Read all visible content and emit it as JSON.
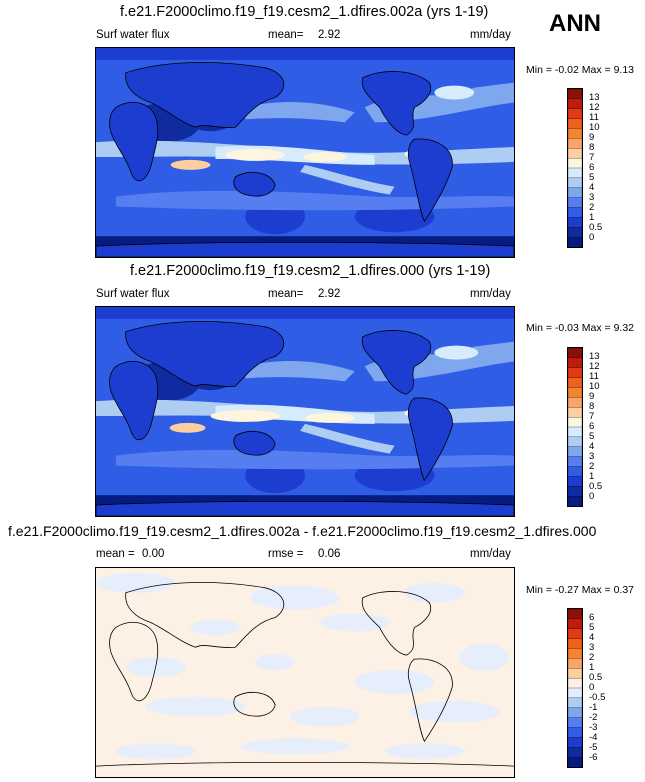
{
  "season": "ANN",
  "panels": [
    {
      "title": "f.e21.F2000climo.f19_f19.cesm2_1.dfires.002a (yrs 1-19)",
      "left_label": "Surf water flux",
      "mid_label": "mean=",
      "mid_value": "2.92",
      "units": "mm/day",
      "min_label": "Min =",
      "min_value": "-0.02",
      "max_label": "Max =",
      "max_value": "9.13",
      "colorbar_ticks": [
        "13",
        "12",
        "11",
        "10",
        "9",
        "8",
        "7",
        "6",
        "5",
        "4",
        "3",
        "2",
        "1",
        "0.5",
        "0"
      ],
      "colorbar_colors": [
        "#8b1008",
        "#c01c0c",
        "#e23a14",
        "#f0601e",
        "#f6842e",
        "#fba468",
        "#fdcfa0",
        "#fdf5de",
        "#d6ebfb",
        "#aecdf3",
        "#7ea7ee",
        "#567ef0",
        "#2f5de6",
        "#1d3dd0",
        "#102ba0",
        "#061c80"
      ]
    },
    {
      "title": "f.e21.F2000climo.f19_f19.cesm2_1.dfires.000 (yrs 1-19)",
      "left_label": "Surf water flux",
      "mid_label": "mean=",
      "mid_value": "2.92",
      "units": "mm/day",
      "min_label": "Min =",
      "min_value": "-0.03",
      "max_label": "Max =",
      "max_value": "9.32",
      "colorbar_ticks": [
        "13",
        "12",
        "11",
        "10",
        "9",
        "8",
        "7",
        "6",
        "5",
        "4",
        "3",
        "2",
        "1",
        "0.5",
        "0"
      ],
      "colorbar_colors": [
        "#8b1008",
        "#c01c0c",
        "#e23a14",
        "#f0601e",
        "#f6842e",
        "#fba468",
        "#fdcfa0",
        "#fdf5de",
        "#d6ebfb",
        "#aecdf3",
        "#7ea7ee",
        "#567ef0",
        "#2f5de6",
        "#1d3dd0",
        "#102ba0",
        "#061c80"
      ]
    },
    {
      "title": "f.e21.F2000climo.f19_f19.cesm2_1.dfires.002a - f.e21.F2000climo.f19_f19.cesm2_1.dfires.000",
      "left_label": "mean =",
      "left_value": "0.00",
      "mid_label": "rmse =",
      "mid_value": "0.06",
      "units": "mm/day",
      "min_label": "Min =",
      "min_value": "-0.27",
      "max_label": "Max =",
      "max_value": "0.37",
      "colorbar_ticks": [
        "6",
        "5",
        "4",
        "3",
        "2",
        "1",
        "0.5",
        "0",
        "-0.5",
        "-1",
        "-2",
        "-3",
        "-4",
        "-5",
        "-6"
      ],
      "colorbar_colors": [
        "#8b1008",
        "#c01c0c",
        "#e23a14",
        "#f0601e",
        "#f6842e",
        "#fba468",
        "#fdcfa0",
        "#fdf0e4",
        "#e6eefc",
        "#aecdf3",
        "#7ea7ee",
        "#567ef0",
        "#2f5de6",
        "#1d3dd0",
        "#102ba0",
        "#061c80"
      ]
    }
  ],
  "chart_data": [
    {
      "type": "heatmap",
      "title": "f.e21.F2000climo.f19_f19.cesm2_1.dfires.002a (yrs 1-19)",
      "variable": "Surf water flux",
      "units": "mm/day",
      "season": "ANN",
      "mean": 2.92,
      "min": -0.02,
      "max": 9.13,
      "contour_levels": [
        0,
        0.5,
        1,
        2,
        3,
        4,
        5,
        6,
        7,
        8,
        9,
        10,
        11,
        12,
        13
      ]
    },
    {
      "type": "heatmap",
      "title": "f.e21.F2000climo.f19_f19.cesm2_1.dfires.000 (yrs 1-19)",
      "variable": "Surf water flux",
      "units": "mm/day",
      "season": "ANN",
      "mean": 2.92,
      "min": -0.03,
      "max": 9.32,
      "contour_levels": [
        0,
        0.5,
        1,
        2,
        3,
        4,
        5,
        6,
        7,
        8,
        9,
        10,
        11,
        12,
        13
      ]
    },
    {
      "type": "heatmap",
      "title": "f.e21.F2000climo.f19_f19.cesm2_1.dfires.002a - f.e21.F2000climo.f19_f19.cesm2_1.dfires.000",
      "units": "mm/day",
      "season": "ANN",
      "mean": 0.0,
      "rmse": 0.06,
      "min": -0.27,
      "max": 0.37,
      "contour_levels": [
        -6,
        -5,
        -4,
        -3,
        -2,
        -1,
        -0.5,
        0,
        0.5,
        1,
        2,
        3,
        4,
        5,
        6
      ]
    }
  ]
}
